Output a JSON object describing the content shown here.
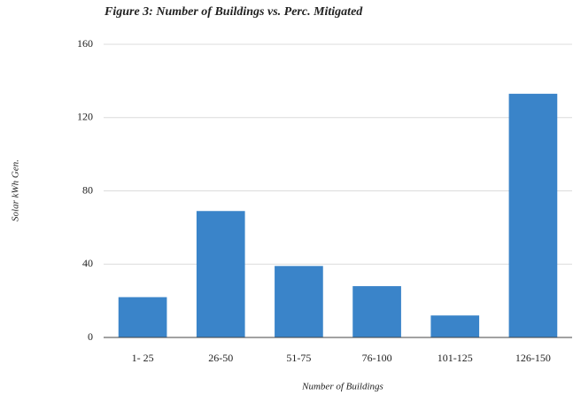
{
  "chart_data": {
    "type": "bar",
    "title": "Figure 3: Number of Buildings vs. Perc. Mitigated",
    "x_label": "Number of Buildings",
    "y_label": "Solar kWh Gen.",
    "categories": [
      "1- 25",
      "26-50",
      "51-75",
      "76-100",
      "101-125",
      "126-150"
    ],
    "values": [
      22,
      69,
      39,
      28,
      12,
      133
    ],
    "color": "#3a84c9",
    "ylim": [
      0,
      160
    ],
    "yticks": [
      0,
      40,
      80,
      120,
      160
    ],
    "grid": true
  }
}
